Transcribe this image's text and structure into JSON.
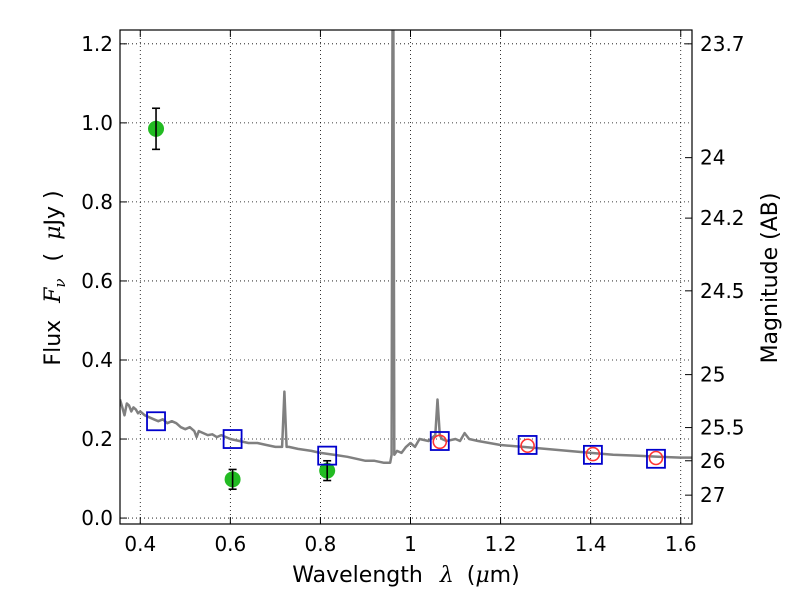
{
  "chart_data": {
    "type": "scatter",
    "xlabel": "Wavelength",
    "xlabel_symbol": "λ",
    "xlabel_unit_prefix": "(",
    "xlabel_unit_mu": "μ",
    "xlabel_unit_rest": "m)",
    "ylabel": "Flux",
    "ylabel_symbol": "F",
    "ylabel_sub": "ν",
    "ylabel_unit_prefix": "(",
    "ylabel_unit_mu": "μ",
    "ylabel_unit_rest": "Jy )",
    "y2label": "Magnitude (AB)",
    "xlim": [
      0.355,
      1.625
    ],
    "ylim": [
      -0.015,
      1.235
    ],
    "grid": true,
    "x_ticks": [
      0.4,
      0.6,
      0.8,
      1.0,
      1.2,
      1.4,
      1.6
    ],
    "x_tick_labels": [
      "0.4",
      "0.6",
      "0.8",
      "1",
      "1.2",
      "1.4",
      "1.6"
    ],
    "y_ticks": [
      0.0,
      0.2,
      0.4,
      0.6,
      0.8,
      1.0,
      1.2
    ],
    "y_tick_labels": [
      "0.0",
      "0.2",
      "0.4",
      "0.6",
      "0.8",
      "1.0",
      "1.2"
    ],
    "mag_ticks": [
      {
        "label": "23.7",
        "flux": 1.2
      },
      {
        "label": "24",
        "flux": 0.912
      },
      {
        "label": "24.2",
        "flux": 0.759
      },
      {
        "label": "24.5",
        "flux": 0.575
      },
      {
        "label": "25",
        "flux": 0.363
      },
      {
        "label": "25.5",
        "flux": 0.229
      },
      {
        "label": "26",
        "flux": 0.145
      },
      {
        "label": "27",
        "flux": 0.058
      }
    ],
    "colors": {
      "sed": "#808080",
      "observed": "#22bb22",
      "model_box": "#0000cc",
      "model_circle": "#ff3333",
      "errorbar": "#000000"
    },
    "series": [
      {
        "name": "sed",
        "kind": "line",
        "x": [
          0.355,
          0.36,
          0.365,
          0.37,
          0.375,
          0.38,
          0.385,
          0.39,
          0.395,
          0.4,
          0.41,
          0.42,
          0.43,
          0.44,
          0.45,
          0.46,
          0.47,
          0.48,
          0.49,
          0.5,
          0.51,
          0.52,
          0.525,
          0.53,
          0.54,
          0.55,
          0.56,
          0.57,
          0.58,
          0.6,
          0.62,
          0.64,
          0.66,
          0.68,
          0.7,
          0.715,
          0.72,
          0.725,
          0.73,
          0.75,
          0.78,
          0.8,
          0.83,
          0.86,
          0.88,
          0.9,
          0.92,
          0.94,
          0.955,
          0.958,
          0.96,
          0.962,
          0.964,
          0.97,
          0.98,
          0.99,
          1.0,
          1.01,
          1.02,
          1.04,
          1.055,
          1.06,
          1.065,
          1.07,
          1.08,
          1.1,
          1.11,
          1.12,
          1.13,
          1.15,
          1.2,
          1.25,
          1.3,
          1.35,
          1.4,
          1.45,
          1.5,
          1.55,
          1.6,
          1.625
        ],
        "y": [
          0.3,
          0.28,
          0.26,
          0.29,
          0.285,
          0.27,
          0.28,
          0.275,
          0.265,
          0.27,
          0.26,
          0.255,
          0.25,
          0.245,
          0.25,
          0.24,
          0.245,
          0.24,
          0.23,
          0.225,
          0.23,
          0.22,
          0.205,
          0.22,
          0.215,
          0.21,
          0.212,
          0.205,
          0.21,
          0.2,
          0.195,
          0.19,
          0.19,
          0.185,
          0.18,
          0.18,
          0.32,
          0.18,
          0.18,
          0.175,
          0.17,
          0.165,
          0.16,
          0.155,
          0.15,
          0.145,
          0.145,
          0.14,
          0.14,
          0.16,
          1.24,
          1.24,
          0.16,
          0.17,
          0.165,
          0.18,
          0.19,
          0.18,
          0.2,
          0.195,
          0.21,
          0.3,
          0.21,
          0.2,
          0.195,
          0.2,
          0.195,
          0.215,
          0.2,
          0.195,
          0.185,
          0.18,
          0.175,
          0.17,
          0.165,
          0.16,
          0.158,
          0.155,
          0.153,
          0.153
        ]
      },
      {
        "name": "observed",
        "kind": "points",
        "x": [
          0.435,
          0.605,
          0.815
        ],
        "y": [
          0.985,
          0.098,
          0.12
        ],
        "yerr": [
          0.052,
          0.025,
          0.025
        ]
      },
      {
        "name": "model_box",
        "kind": "square-markers",
        "x": [
          0.435,
          0.605,
          0.815,
          1.065,
          1.26,
          1.405,
          1.545
        ],
        "y": [
          0.245,
          0.2,
          0.158,
          0.195,
          0.185,
          0.16,
          0.15
        ]
      },
      {
        "name": "model_circle",
        "kind": "circle-markers",
        "x": [
          1.065,
          1.26,
          1.405,
          1.545
        ],
        "y": [
          0.193,
          0.183,
          0.162,
          0.152
        ]
      }
    ]
  }
}
